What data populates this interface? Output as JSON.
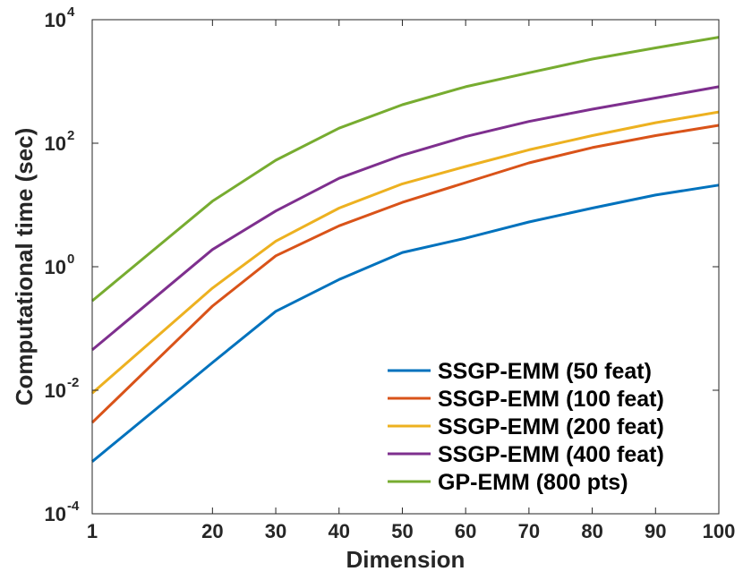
{
  "chart_data": {
    "type": "line",
    "xlabel": "Dimension",
    "ylabel": "Computational time (sec)",
    "yscale": "log",
    "xlim": [
      1,
      100
    ],
    "ylim_exponents": [
      -4,
      4
    ],
    "x_ticks": [
      {
        "value": 1,
        "label": "1"
      },
      {
        "value": 20,
        "label": "20"
      },
      {
        "value": 30,
        "label": "30"
      },
      {
        "value": 40,
        "label": "40"
      },
      {
        "value": 50,
        "label": "50"
      },
      {
        "value": 60,
        "label": "60"
      },
      {
        "value": 70,
        "label": "70"
      },
      {
        "value": 80,
        "label": "80"
      },
      {
        "value": 90,
        "label": "90"
      },
      {
        "value": 100,
        "label": "100"
      }
    ],
    "y_ticks": [
      {
        "exponent": -4,
        "base": "10",
        "exp": "-4"
      },
      {
        "exponent": -2,
        "base": "10",
        "exp": "-2"
      },
      {
        "exponent": 0,
        "base": "10",
        "exp": "0"
      },
      {
        "exponent": 2,
        "base": "10",
        "exp": "2"
      },
      {
        "exponent": 4,
        "base": "10",
        "exp": "4"
      }
    ],
    "legend_position": "bottom-right",
    "x": [
      1,
      20,
      30,
      40,
      50,
      60,
      70,
      80,
      90,
      100
    ],
    "series": [
      {
        "name": "SSGP-EMM (50 feat)",
        "color": "#0072BD",
        "values": [
          0.0007,
          0.028,
          0.19,
          0.62,
          1.7,
          2.9,
          5.3,
          8.9,
          14.5,
          21
        ]
      },
      {
        "name": "SSGP-EMM (100 feat)",
        "color": "#D95319",
        "values": [
          0.003,
          0.23,
          1.5,
          4.6,
          11,
          23,
          48,
          85,
          133,
          195
        ]
      },
      {
        "name": "SSGP-EMM (200 feat)",
        "color": "#EDB120",
        "values": [
          0.009,
          0.45,
          2.6,
          8.9,
          22,
          42,
          78,
          133,
          215,
          320
        ]
      },
      {
        "name": "SSGP-EMM (400 feat)",
        "color": "#7E2F8E",
        "values": [
          0.045,
          1.9,
          8.0,
          27,
          64,
          128,
          225,
          355,
          540,
          820
        ]
      },
      {
        "name": "GP-EMM (800 pts)",
        "color": "#77AC30",
        "values": [
          0.28,
          11.5,
          53,
          175,
          420,
          820,
          1380,
          2300,
          3500,
          5200
        ]
      }
    ]
  }
}
